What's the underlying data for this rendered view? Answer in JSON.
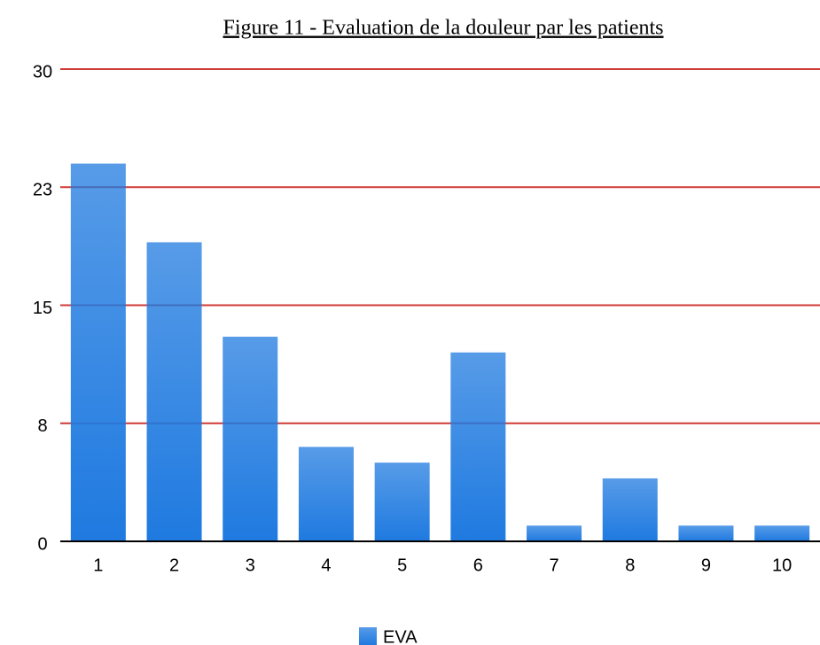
{
  "chart_data": {
    "type": "bar",
    "title": "Figure 11 - Evaluation de la douleur par les patients",
    "categories": [
      "1",
      "2",
      "3",
      "4",
      "5",
      "6",
      "7",
      "8",
      "9",
      "10"
    ],
    "series": [
      {
        "name": "EVA",
        "color": "#1f7ae0",
        "values": [
          24,
          19,
          13,
          6,
          5,
          12,
          1,
          4,
          1,
          1
        ]
      }
    ],
    "ylim": [
      0,
      30
    ],
    "yticks": [
      0,
      {
        "value": 7.5,
        "label": "8"
      },
      15,
      {
        "value": 22.5,
        "label": "23"
      },
      30
    ],
    "grid": true,
    "grid_color": "#d03a36",
    "legend": "bottom"
  }
}
